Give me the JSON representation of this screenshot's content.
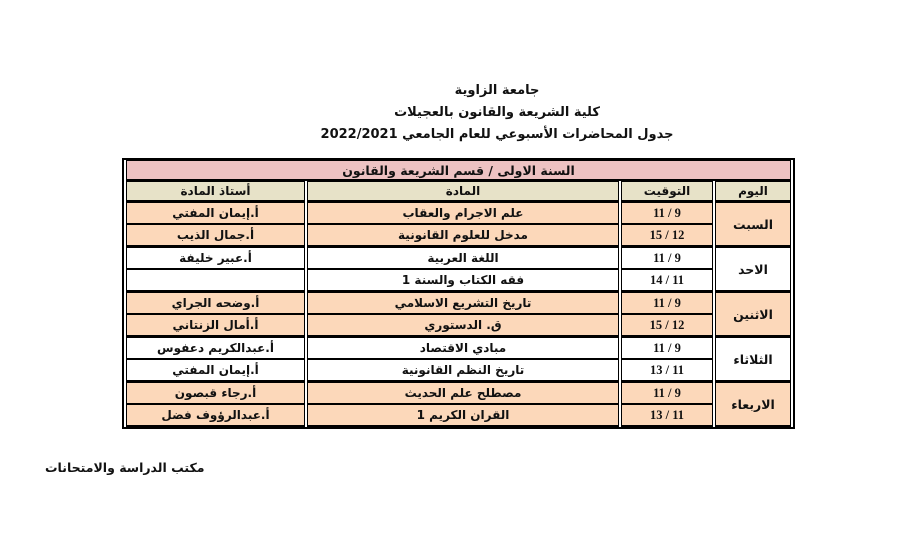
{
  "page": {
    "titles": [
      "جامعة الزاوية",
      "كلية الشريعة والقانون بالعجيلات",
      "جدول المحاضرات الأسبوعي للعام الجامعي 2022/2021"
    ],
    "footer": "مكتب الدراسة والامتحانات"
  },
  "table": {
    "title": "السنة الاولى /  قسم الشريعة والقانون",
    "columns": {
      "day": "اليوم",
      "time": "التوقيت",
      "subject": "المادة",
      "teacher": "أستاذ المادة"
    },
    "colors": {
      "title_bg": "#edc2c2",
      "header_bg": "#e7e2c8",
      "row_peach": "#fcd8ba",
      "row_white": "#ffffff",
      "border": "#000000"
    },
    "days": [
      {
        "day": "السبت",
        "shade": "peach",
        "rows": [
          {
            "time": "11 / 9",
            "subject": "علم الاجرام والعقاب",
            "teacher": "أ.إيمان المفتي"
          },
          {
            "time": "15 / 12",
            "subject": "مدخل للعلوم القانونية",
            "teacher": "أ.جمال الذيب"
          }
        ]
      },
      {
        "day": "الاحد",
        "shade": "white",
        "rows": [
          {
            "time": "11 / 9",
            "subject": "اللغة العربية",
            "teacher": "أ.عبير خليفة"
          },
          {
            "time": "14 / 11",
            "subject": "فقه الكتاب والسنة 1",
            "teacher": ""
          }
        ]
      },
      {
        "day": "الاثنين",
        "shade": "peach",
        "rows": [
          {
            "time": "11 / 9",
            "subject": "تاريخ التشريع الاسلامي",
            "teacher": "أ.وضحه الجراي"
          },
          {
            "time": "15 / 12",
            "subject": "ق. الدستوري",
            "teacher": "أ.أمال الزنتاني"
          }
        ]
      },
      {
        "day": "الثلاثاء",
        "shade": "white",
        "rows": [
          {
            "time": "11 / 9",
            "subject": "مبادي الاقتصاد",
            "teacher": "أ.عبدالكريم دعفوس"
          },
          {
            "time": "13 / 11",
            "subject": "تاريخ النظم القانونية",
            "teacher": "أ.إيمان المفتي"
          }
        ]
      },
      {
        "day": "الاربعاء",
        "shade": "peach",
        "rows": [
          {
            "time": "11 / 9",
            "subject": "مصطلح علم الحديث",
            "teacher": "أ.رجاء قبصون"
          },
          {
            "time": "13 / 11",
            "subject": "القران الكريم 1",
            "teacher": "أ.عبدالرؤوف فضل"
          }
        ]
      }
    ]
  }
}
